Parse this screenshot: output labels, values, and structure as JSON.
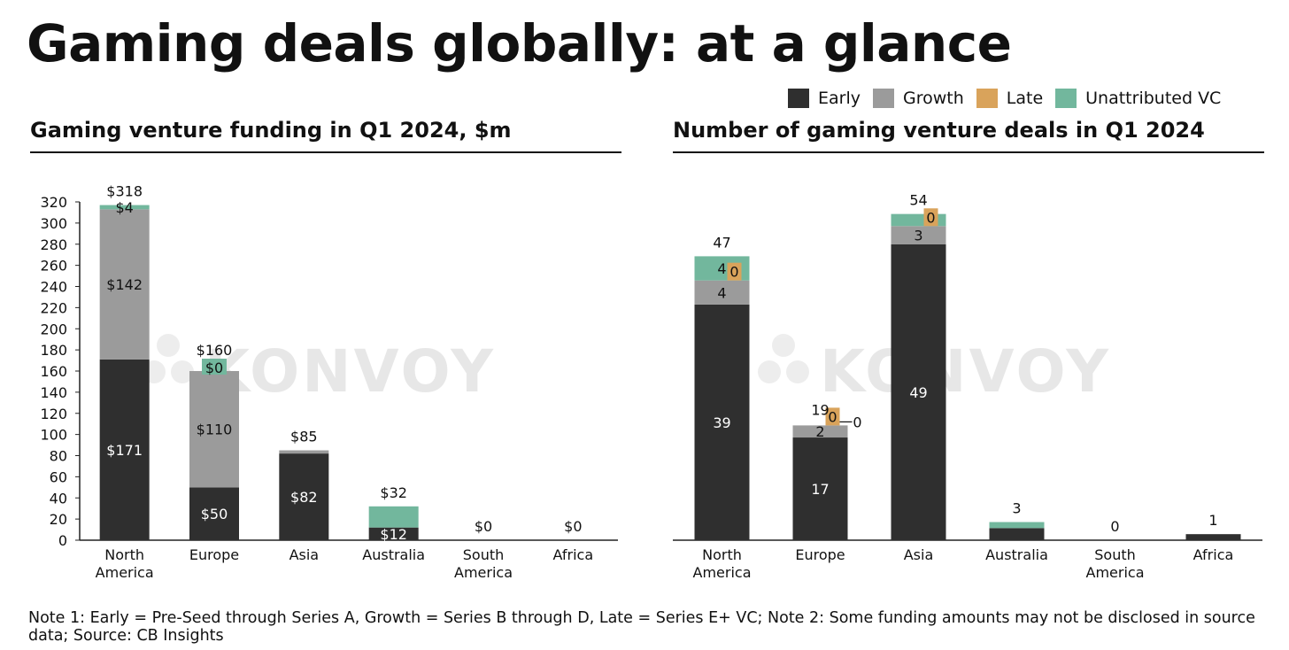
{
  "title": "Gaming deals globally: at a glance",
  "legend": [
    {
      "label": "Early",
      "color": "#2f2f2f"
    },
    {
      "label": "Growth",
      "color": "#9b9b9b"
    },
    {
      "label": "Late",
      "color": "#d9a35b"
    },
    {
      "label": "Unattributed VC",
      "color": "#72b79d"
    }
  ],
  "left_subtitle_bold": "Gaming venture funding in Q1 2024,",
  "left_subtitle_unit": "$m",
  "right_subtitle": "Number of gaming venture deals in Q1 2024",
  "watermark": "KONVOY",
  "note": "Note 1: Early = Pre-Seed through Series A, Growth = Series B through D, Late = Series E+ VC; Note 2: Some funding amounts may not be disclosed in source data; Source: CB Insights",
  "chart_data": [
    {
      "type": "bar",
      "stacked": true,
      "title": "Gaming venture funding in Q1 2024, $m",
      "categories": [
        "North America",
        "Europe",
        "Asia",
        "Australia",
        "South America",
        "Africa"
      ],
      "category_lines": [
        [
          "North",
          "America"
        ],
        [
          "Europe"
        ],
        [
          "Asia"
        ],
        [
          "Australia"
        ],
        [
          "South",
          "America"
        ],
        [
          "Africa"
        ]
      ],
      "ylim": [
        0,
        320
      ],
      "yticks": [
        0,
        20,
        40,
        60,
        80,
        100,
        120,
        140,
        160,
        180,
        200,
        220,
        240,
        260,
        280,
        300,
        320
      ],
      "grid": false,
      "series": [
        {
          "name": "Early",
          "color": "#2f2f2f",
          "values": [
            171,
            50,
            82,
            12,
            0,
            0
          ],
          "labels": [
            "$171",
            "$50",
            "$82",
            "$12",
            "",
            ""
          ]
        },
        {
          "name": "Growth",
          "color": "#9b9b9b",
          "values": [
            142,
            110,
            3,
            0,
            0,
            0
          ],
          "labels": [
            "$142",
            "$110",
            "",
            "",
            "",
            ""
          ]
        },
        {
          "name": "Late",
          "color": "#d9a35b",
          "values": [
            0,
            0,
            0,
            0,
            0,
            0
          ],
          "labels": [
            "",
            "",
            "",
            "",
            "",
            ""
          ]
        },
        {
          "name": "Unattributed VC",
          "color": "#72b79d",
          "values": [
            4,
            0,
            0,
            20,
            0,
            0
          ],
          "labels": [
            "$4",
            "$0",
            "",
            "",
            "",
            ""
          ]
        }
      ],
      "totals": [
        "$318",
        "$160",
        "$85",
        "$32",
        "$0",
        "$0"
      ]
    },
    {
      "type": "bar",
      "stacked": true,
      "title": "Number of gaming venture deals in Q1 2024",
      "categories": [
        "North America",
        "Europe",
        "Asia",
        "Australia",
        "South America",
        "Africa"
      ],
      "category_lines": [
        [
          "North",
          "America"
        ],
        [
          "Europe"
        ],
        [
          "Asia"
        ],
        [
          "Australia"
        ],
        [
          "South",
          "America"
        ],
        [
          "Africa"
        ]
      ],
      "ylim": [
        0,
        56
      ],
      "grid": false,
      "series": [
        {
          "name": "Early",
          "color": "#2f2f2f",
          "values": [
            39,
            17,
            49,
            2,
            0,
            1
          ],
          "labels": [
            "39",
            "17",
            "49",
            "",
            "",
            ""
          ]
        },
        {
          "name": "Growth",
          "color": "#9b9b9b",
          "values": [
            4,
            2,
            3,
            0,
            0,
            0
          ],
          "labels": [
            "4",
            "2",
            "3",
            "",
            "",
            ""
          ]
        },
        {
          "name": "Late",
          "color": "#d9a35b",
          "values": [
            0,
            0,
            0,
            0,
            0,
            0
          ],
          "labels": [
            "0",
            "0",
            "0",
            "",
            "",
            ""
          ]
        },
        {
          "name": "Unattributed VC",
          "color": "#72b79d",
          "values": [
            4,
            0,
            2,
            1,
            0,
            0
          ],
          "labels": [
            "4",
            "0",
            "",
            "",
            "",
            ""
          ]
        }
      ],
      "totals": [
        "47",
        "19",
        "54",
        "3",
        "0",
        "1"
      ]
    }
  ]
}
